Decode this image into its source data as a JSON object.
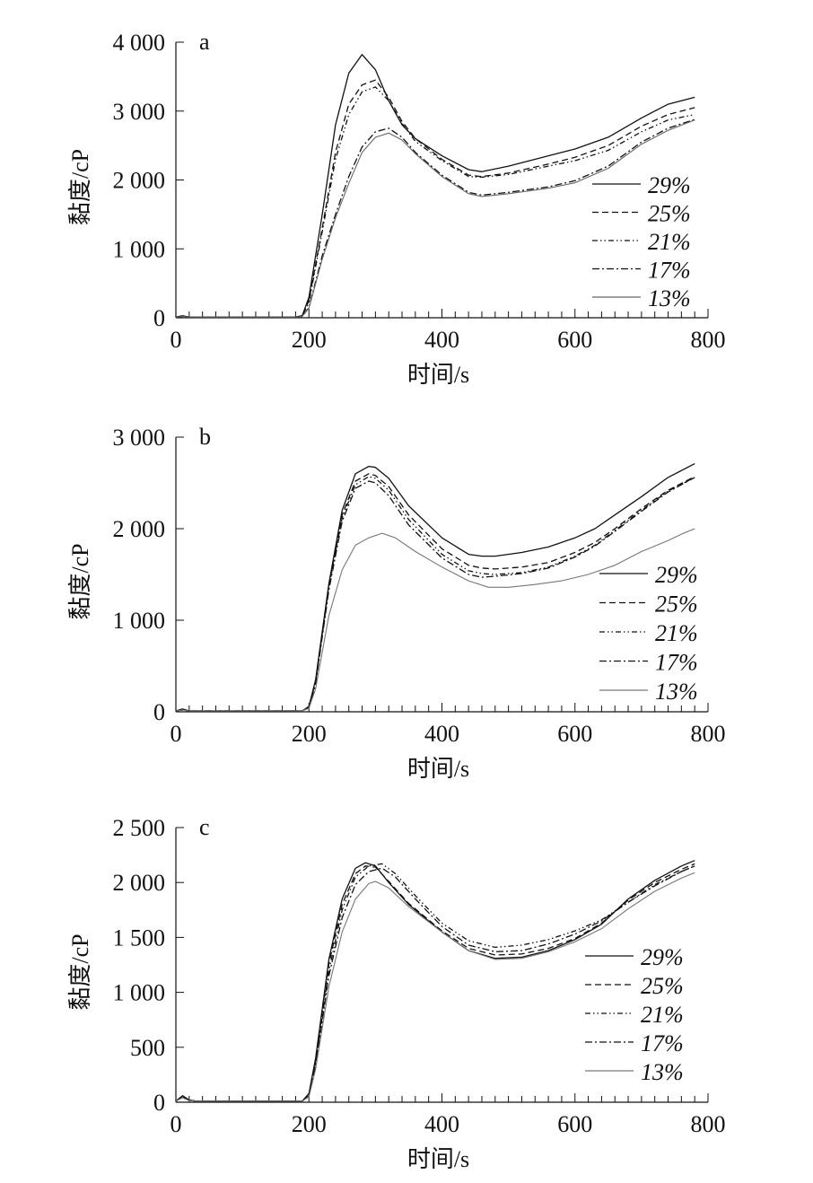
{
  "chart_data": [
    {
      "type": "line",
      "panel_label": "a",
      "xlabel": "时间/s",
      "ylabel": "黏度/cP",
      "xlim": [
        0,
        800
      ],
      "ylim": [
        0,
        4000
      ],
      "xticks": [
        "0",
        "200",
        "400",
        "600",
        "800"
      ],
      "yticks": [
        "0",
        "1 000",
        "2 000",
        "3 000",
        "4 000"
      ],
      "legend_position": "right",
      "series": [
        {
          "name": "29%",
          "style": "solid",
          "color": "#111111",
          "x": [
            0,
            10,
            20,
            100,
            180,
            190,
            200,
            220,
            240,
            260,
            280,
            300,
            320,
            340,
            360,
            400,
            440,
            460,
            500,
            560,
            600,
            650,
            700,
            740,
            780
          ],
          "y": [
            10,
            30,
            10,
            10,
            10,
            30,
            300,
            1500,
            2800,
            3550,
            3820,
            3600,
            3150,
            2800,
            2600,
            2350,
            2150,
            2120,
            2200,
            2350,
            2450,
            2620,
            2900,
            3100,
            3200
          ]
        },
        {
          "name": "25%",
          "style": "dash",
          "color": "#111111",
          "x": [
            0,
            10,
            20,
            100,
            180,
            190,
            200,
            220,
            240,
            260,
            280,
            300,
            320,
            340,
            360,
            400,
            440,
            460,
            500,
            560,
            600,
            650,
            700,
            740,
            780
          ],
          "y": [
            10,
            25,
            10,
            10,
            10,
            30,
            250,
            1300,
            2400,
            3100,
            3380,
            3450,
            3200,
            2850,
            2600,
            2300,
            2070,
            2050,
            2100,
            2230,
            2330,
            2500,
            2780,
            2950,
            3050
          ]
        },
        {
          "name": "21%",
          "style": "dash-dot-dot",
          "color": "#111111",
          "x": [
            0,
            10,
            20,
            100,
            180,
            190,
            200,
            220,
            240,
            260,
            280,
            300,
            320,
            340,
            360,
            400,
            440,
            460,
            500,
            560,
            600,
            650,
            700,
            740,
            780
          ],
          "y": [
            10,
            25,
            10,
            10,
            10,
            30,
            220,
            1250,
            2300,
            2950,
            3280,
            3350,
            3150,
            2820,
            2560,
            2280,
            2050,
            2040,
            2080,
            2200,
            2280,
            2430,
            2700,
            2870,
            2950
          ]
        },
        {
          "name": "17%",
          "style": "dash-dot",
          "color": "#111111",
          "x": [
            0,
            10,
            20,
            100,
            180,
            190,
            200,
            220,
            240,
            260,
            280,
            300,
            320,
            340,
            360,
            400,
            440,
            460,
            500,
            560,
            600,
            650,
            700,
            740,
            780
          ],
          "y": [
            10,
            20,
            10,
            10,
            10,
            20,
            150,
            900,
            1500,
            2050,
            2480,
            2700,
            2750,
            2620,
            2400,
            2070,
            1820,
            1780,
            1820,
            1900,
            1990,
            2200,
            2550,
            2750,
            2880
          ]
        },
        {
          "name": "13%",
          "style": "solid-gray",
          "color": "#666666",
          "x": [
            0,
            10,
            20,
            100,
            180,
            190,
            200,
            220,
            240,
            260,
            280,
            300,
            320,
            340,
            360,
            400,
            440,
            460,
            500,
            560,
            600,
            650,
            700,
            740,
            780
          ],
          "y": [
            10,
            20,
            10,
            10,
            10,
            20,
            140,
            850,
            1450,
            1950,
            2400,
            2620,
            2680,
            2580,
            2380,
            2050,
            1800,
            1760,
            1800,
            1880,
            1960,
            2170,
            2520,
            2720,
            2870
          ]
        }
      ],
      "legend_labels": [
        "29%",
        "25%",
        "21%",
        "17%",
        "13%"
      ]
    },
    {
      "type": "line",
      "panel_label": "b",
      "xlabel": "时间/s",
      "ylabel": "黏度/cP",
      "xlim": [
        0,
        800
      ],
      "ylim": [
        0,
        3000
      ],
      "xticks": [
        "0",
        "200",
        "400",
        "600",
        "800"
      ],
      "yticks": [
        "0",
        "1 000",
        "2 000",
        "3 000"
      ],
      "legend_position": "right",
      "series": [
        {
          "name": "29%",
          "style": "solid",
          "color": "#111111",
          "x": [
            0,
            10,
            20,
            100,
            190,
            200,
            210,
            230,
            250,
            270,
            290,
            300,
            320,
            350,
            400,
            440,
            460,
            480,
            520,
            560,
            600,
            630,
            660,
            700,
            740,
            780
          ],
          "y": [
            10,
            30,
            10,
            10,
            10,
            60,
            350,
            1400,
            2200,
            2600,
            2680,
            2670,
            2550,
            2250,
            1900,
            1720,
            1700,
            1700,
            1740,
            1800,
            1900,
            2000,
            2150,
            2350,
            2560,
            2710
          ]
        },
        {
          "name": "25%",
          "style": "dash",
          "color": "#111111",
          "x": [
            0,
            10,
            20,
            100,
            190,
            200,
            210,
            230,
            250,
            270,
            290,
            300,
            320,
            350,
            400,
            440,
            460,
            480,
            520,
            560,
            600,
            630,
            660,
            700,
            740,
            780
          ],
          "y": [
            10,
            25,
            10,
            10,
            10,
            50,
            330,
            1380,
            2150,
            2520,
            2600,
            2580,
            2460,
            2150,
            1780,
            1600,
            1570,
            1560,
            1580,
            1630,
            1740,
            1850,
            2000,
            2220,
            2420,
            2570
          ]
        },
        {
          "name": "21%",
          "style": "dash-dot-dot",
          "color": "#111111",
          "x": [
            0,
            10,
            20,
            100,
            190,
            200,
            210,
            230,
            250,
            270,
            290,
            300,
            320,
            350,
            400,
            440,
            460,
            480,
            520,
            560,
            600,
            630,
            660,
            700,
            740,
            780
          ],
          "y": [
            10,
            25,
            10,
            10,
            10,
            50,
            320,
            1360,
            2120,
            2480,
            2570,
            2550,
            2420,
            2100,
            1720,
            1540,
            1510,
            1500,
            1520,
            1580,
            1700,
            1820,
            1980,
            2200,
            2410,
            2560
          ]
        },
        {
          "name": "17%",
          "style": "dash-dot",
          "color": "#111111",
          "x": [
            0,
            10,
            20,
            100,
            190,
            200,
            210,
            230,
            250,
            270,
            290,
            300,
            320,
            350,
            400,
            440,
            460,
            480,
            520,
            560,
            600,
            630,
            660,
            700,
            740,
            780
          ],
          "y": [
            10,
            20,
            10,
            10,
            10,
            40,
            300,
            1330,
            2080,
            2440,
            2520,
            2500,
            2360,
            2040,
            1680,
            1500,
            1470,
            1480,
            1510,
            1570,
            1690,
            1810,
            1970,
            2190,
            2400,
            2560
          ]
        },
        {
          "name": "13%",
          "style": "solid-gray",
          "color": "#777777",
          "x": [
            0,
            10,
            20,
            100,
            190,
            200,
            210,
            230,
            250,
            270,
            290,
            310,
            330,
            360,
            400,
            440,
            470,
            500,
            540,
            580,
            620,
            660,
            700,
            740,
            760,
            780
          ],
          "y": [
            10,
            20,
            10,
            10,
            10,
            40,
            250,
            1050,
            1550,
            1820,
            1900,
            1950,
            1900,
            1750,
            1580,
            1430,
            1360,
            1360,
            1390,
            1430,
            1500,
            1600,
            1750,
            1870,
            1940,
            2000
          ]
        }
      ],
      "legend_labels": [
        "29%",
        "25%",
        "21%",
        "17%",
        "13%"
      ]
    },
    {
      "type": "line",
      "panel_label": "c",
      "xlabel": "时间/s",
      "ylabel": "黏度/cP",
      "xlim": [
        0,
        800
      ],
      "ylim": [
        0,
        2500
      ],
      "xticks": [
        "0",
        "200",
        "400",
        "600",
        "800"
      ],
      "yticks": [
        "0",
        "500",
        "1 000",
        "1 500",
        "2 000",
        "2 500"
      ],
      "legend_position": "right",
      "series": [
        {
          "name": "29%",
          "style": "solid",
          "color": "#111111",
          "x": [
            0,
            10,
            20,
            30,
            100,
            190,
            200,
            210,
            230,
            250,
            270,
            285,
            300,
            320,
            350,
            400,
            440,
            480,
            520,
            560,
            600,
            640,
            680,
            720,
            760,
            780
          ],
          "y": [
            10,
            60,
            20,
            10,
            10,
            10,
            80,
            400,
            1300,
            1850,
            2130,
            2180,
            2150,
            2000,
            1800,
            1550,
            1380,
            1310,
            1320,
            1380,
            1480,
            1620,
            1850,
            2020,
            2150,
            2200
          ]
        },
        {
          "name": "25%",
          "style": "dash",
          "color": "#111111",
          "x": [
            0,
            10,
            20,
            30,
            100,
            190,
            200,
            210,
            230,
            250,
            270,
            285,
            300,
            320,
            350,
            400,
            440,
            480,
            520,
            560,
            600,
            640,
            680,
            720,
            760,
            780
          ],
          "y": [
            10,
            55,
            20,
            10,
            10,
            10,
            70,
            380,
            1260,
            1800,
            2080,
            2150,
            2140,
            2010,
            1810,
            1560,
            1400,
            1340,
            1350,
            1400,
            1490,
            1630,
            1840,
            2000,
            2120,
            2170
          ]
        },
        {
          "name": "21%",
          "style": "dash-dot-dot",
          "color": "#111111",
          "x": [
            0,
            10,
            20,
            30,
            100,
            190,
            200,
            210,
            230,
            250,
            270,
            290,
            310,
            330,
            360,
            400,
            440,
            480,
            520,
            560,
            600,
            640,
            680,
            720,
            760,
            780
          ],
          "y": [
            10,
            50,
            20,
            10,
            10,
            10,
            60,
            350,
            1200,
            1750,
            2050,
            2150,
            2170,
            2080,
            1880,
            1630,
            1470,
            1410,
            1430,
            1480,
            1560,
            1660,
            1820,
            1980,
            2100,
            2150
          ]
        },
        {
          "name": "17%",
          "style": "dash-dot",
          "color": "#111111",
          "x": [
            0,
            10,
            20,
            30,
            100,
            190,
            200,
            210,
            230,
            250,
            270,
            290,
            310,
            330,
            360,
            400,
            440,
            480,
            520,
            560,
            600,
            640,
            680,
            720,
            760,
            780
          ],
          "y": [
            10,
            50,
            20,
            10,
            10,
            10,
            60,
            330,
            1150,
            1680,
            1980,
            2100,
            2130,
            2050,
            1850,
            1600,
            1430,
            1370,
            1380,
            1440,
            1530,
            1650,
            1820,
            1970,
            2100,
            2150
          ]
        },
        {
          "name": "13%",
          "style": "solid-gray",
          "color": "#777777",
          "x": [
            0,
            10,
            20,
            30,
            100,
            190,
            200,
            210,
            230,
            250,
            270,
            290,
            300,
            320,
            350,
            400,
            440,
            480,
            520,
            560,
            600,
            640,
            680,
            720,
            760,
            780
          ],
          "y": [
            10,
            40,
            15,
            10,
            10,
            10,
            50,
            300,
            1050,
            1550,
            1850,
            1990,
            2010,
            1950,
            1780,
            1550,
            1380,
            1300,
            1310,
            1370,
            1460,
            1580,
            1760,
            1920,
            2040,
            2090
          ]
        }
      ],
      "legend_labels": [
        "29%",
        "25%",
        "21%",
        "17%",
        "13%"
      ]
    }
  ]
}
